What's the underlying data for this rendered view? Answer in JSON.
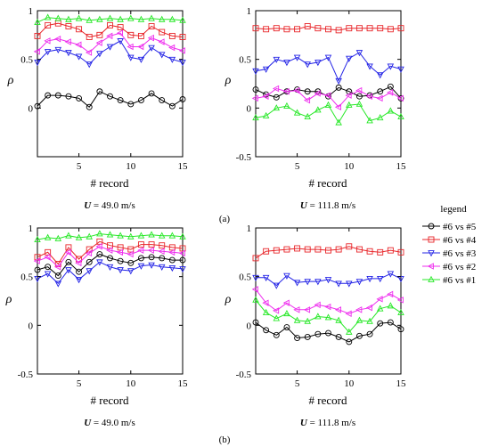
{
  "chart_data": [
    {
      "type": "line",
      "panel": "a-left",
      "x": [
        1,
        2,
        3,
        4,
        5,
        6,
        7,
        8,
        9,
        10,
        11,
        12,
        13,
        14,
        15
      ],
      "xlabel": "# record",
      "ylabel": "ρ",
      "xlim": [
        1,
        15
      ],
      "ylim": [
        -0.5,
        1
      ],
      "xticks": [
        5,
        10,
        15
      ],
      "yticks": [
        0,
        0.5,
        1
      ],
      "yticklabels": [
        "0",
        "0.5",
        "1"
      ],
      "caption_var": "U",
      "caption_val": " = 49.0 m/s",
      "series": [
        {
          "name": "#6 vs #5",
          "values": [
            0.02,
            0.13,
            0.13,
            0.12,
            0.1,
            0.01,
            0.17,
            0.12,
            0.08,
            0.04,
            0.08,
            0.15,
            0.08,
            0.02,
            0.09
          ]
        },
        {
          "name": "#6 vs #4",
          "values": [
            0.74,
            0.85,
            0.87,
            0.84,
            0.81,
            0.73,
            0.75,
            0.85,
            0.83,
            0.75,
            0.74,
            0.84,
            0.78,
            0.74,
            0.73
          ]
        },
        {
          "name": "#6 vs #3",
          "values": [
            0.47,
            0.58,
            0.6,
            0.57,
            0.53,
            0.45,
            0.56,
            0.63,
            0.69,
            0.52,
            0.5,
            0.62,
            0.55,
            0.5,
            0.47
          ]
        },
        {
          "name": "#6 vs #2",
          "values": [
            0.58,
            0.69,
            0.71,
            0.68,
            0.65,
            0.57,
            0.67,
            0.74,
            0.77,
            0.63,
            0.63,
            0.72,
            0.68,
            0.62,
            0.59
          ]
        },
        {
          "name": "#6 vs #1",
          "values": [
            0.88,
            0.93,
            0.92,
            0.91,
            0.92,
            0.9,
            0.91,
            0.92,
            0.91,
            0.92,
            0.91,
            0.92,
            0.91,
            0.91,
            0.9
          ]
        }
      ]
    },
    {
      "type": "line",
      "panel": "a-right",
      "x": [
        1,
        2,
        3,
        4,
        5,
        6,
        7,
        8,
        9,
        10,
        11,
        12,
        13,
        14,
        15
      ],
      "xlabel": "# record",
      "ylabel": "ρ",
      "xlim": [
        1,
        15
      ],
      "ylim": [
        -0.5,
        1
      ],
      "xticks": [
        5,
        10,
        15
      ],
      "yticks": [
        -0.5,
        0,
        0.5,
        1
      ],
      "yticklabels": [
        "-0.5",
        "0",
        "0.5",
        "1"
      ],
      "caption_var": "U",
      "caption_val": " = 111.8 m/s",
      "series": [
        {
          "name": "#6 vs #5",
          "values": [
            0.19,
            0.14,
            0.11,
            0.17,
            0.19,
            0.17,
            0.17,
            0.12,
            0.21,
            0.17,
            0.12,
            0.13,
            0.17,
            0.22,
            0.1
          ]
        },
        {
          "name": "#6 vs #4",
          "values": [
            0.82,
            0.81,
            0.82,
            0.81,
            0.81,
            0.84,
            0.82,
            0.81,
            0.8,
            0.82,
            0.82,
            0.82,
            0.82,
            0.81,
            0.82
          ]
        },
        {
          "name": "#6 vs #3",
          "values": [
            0.38,
            0.4,
            0.5,
            0.47,
            0.52,
            0.45,
            0.47,
            0.52,
            0.28,
            0.51,
            0.57,
            0.43,
            0.34,
            0.43,
            0.4
          ]
        },
        {
          "name": "#6 vs #2",
          "values": [
            0.1,
            0.12,
            0.2,
            0.17,
            0.18,
            0.08,
            0.15,
            0.13,
            0.01,
            0.13,
            0.18,
            0.12,
            0.1,
            0.16,
            0.1
          ]
        },
        {
          "name": "#6 vs #1",
          "values": [
            -0.1,
            -0.08,
            0.0,
            0.02,
            -0.05,
            -0.09,
            -0.02,
            0.03,
            -0.15,
            0.03,
            0.04,
            -0.13,
            -0.1,
            -0.03,
            -0.09
          ]
        }
      ]
    },
    {
      "type": "line",
      "panel": "b-left",
      "x": [
        1,
        2,
        3,
        4,
        5,
        6,
        7,
        8,
        9,
        10,
        11,
        12,
        13,
        14,
        15
      ],
      "xlabel": "# record",
      "ylabel": "ρ",
      "xlim": [
        1,
        15
      ],
      "ylim": [
        -0.5,
        1
      ],
      "xticks": [
        5,
        10,
        15
      ],
      "yticks": [
        -0.5,
        0,
        0.5,
        1
      ],
      "yticklabels": [
        "-0.5",
        "0",
        "0.5",
        "1"
      ],
      "caption_var": "U",
      "caption_val": " = 49.0 m/s",
      "series": [
        {
          "name": "#6 vs #5",
          "values": [
            0.57,
            0.6,
            0.51,
            0.65,
            0.55,
            0.65,
            0.73,
            0.69,
            0.66,
            0.64,
            0.69,
            0.7,
            0.69,
            0.67,
            0.67
          ]
        },
        {
          "name": "#6 vs #4",
          "values": [
            0.7,
            0.75,
            0.63,
            0.8,
            0.68,
            0.78,
            0.86,
            0.82,
            0.8,
            0.78,
            0.83,
            0.83,
            0.82,
            0.8,
            0.79
          ]
        },
        {
          "name": "#6 vs #3",
          "values": [
            0.48,
            0.53,
            0.43,
            0.57,
            0.47,
            0.56,
            0.65,
            0.6,
            0.57,
            0.56,
            0.61,
            0.62,
            0.6,
            0.59,
            0.58
          ]
        },
        {
          "name": "#6 vs #2",
          "values": [
            0.66,
            0.7,
            0.6,
            0.75,
            0.64,
            0.74,
            0.81,
            0.77,
            0.75,
            0.73,
            0.77,
            0.77,
            0.76,
            0.75,
            0.74
          ]
        },
        {
          "name": "#6 vs #1",
          "values": [
            0.88,
            0.9,
            0.89,
            0.92,
            0.9,
            0.91,
            0.94,
            0.93,
            0.92,
            0.91,
            0.92,
            0.93,
            0.92,
            0.92,
            0.91
          ]
        }
      ]
    },
    {
      "type": "line",
      "panel": "b-right",
      "x": [
        1,
        2,
        3,
        4,
        5,
        6,
        7,
        8,
        9,
        10,
        11,
        12,
        13,
        14,
        15
      ],
      "xlabel": "# record",
      "ylabel": "ρ",
      "xlim": [
        1,
        15
      ],
      "ylim": [
        -0.5,
        1
      ],
      "xticks": [
        5,
        10,
        15
      ],
      "yticks": [
        -0.5,
        0,
        0.5,
        1
      ],
      "yticklabels": [
        "-0.5",
        "0",
        "0.5",
        "1"
      ],
      "caption_var": "U",
      "caption_val": " = 111.8 m/s",
      "series": [
        {
          "name": "#6 vs #5",
          "values": [
            0.03,
            -0.05,
            -0.1,
            -0.02,
            -0.13,
            -0.12,
            -0.09,
            -0.08,
            -0.12,
            -0.17,
            -0.11,
            -0.09,
            0.02,
            0.03,
            -0.04
          ]
        },
        {
          "name": "#6 vs #4",
          "values": [
            0.69,
            0.76,
            0.77,
            0.78,
            0.79,
            0.78,
            0.78,
            0.77,
            0.78,
            0.81,
            0.78,
            0.76,
            0.75,
            0.77,
            0.75
          ]
        },
        {
          "name": "#6 vs #3",
          "values": [
            0.49,
            0.49,
            0.41,
            0.51,
            0.44,
            0.45,
            0.45,
            0.47,
            0.43,
            0.43,
            0.45,
            0.48,
            0.48,
            0.53,
            0.48
          ]
        },
        {
          "name": "#6 vs #2",
          "values": [
            0.37,
            0.23,
            0.15,
            0.23,
            0.16,
            0.16,
            0.21,
            0.19,
            0.16,
            0.12,
            0.16,
            0.18,
            0.27,
            0.32,
            0.26
          ]
        },
        {
          "name": "#6 vs #1",
          "values": [
            0.26,
            0.13,
            0.07,
            0.12,
            0.05,
            0.04,
            0.09,
            0.08,
            0.05,
            -0.07,
            0.05,
            0.04,
            0.17,
            0.2,
            0.13
          ]
        }
      ]
    }
  ],
  "panel_labels": [
    "(a)",
    "(b)"
  ],
  "legend": {
    "title": "legend",
    "entries": [
      {
        "label": "#6 vs #5",
        "color": "#000000",
        "marker": "circle"
      },
      {
        "label": "#6 vs #4",
        "color": "#e8262a",
        "marker": "square"
      },
      {
        "label": "#6 vs #3",
        "color": "#2323e6",
        "marker": "triangle-down"
      },
      {
        "label": "#6 vs #2",
        "color": "#ee2cee",
        "marker": "triangle-left"
      },
      {
        "label": "#6 vs #1",
        "color": "#27e827",
        "marker": "triangle-up"
      }
    ]
  }
}
